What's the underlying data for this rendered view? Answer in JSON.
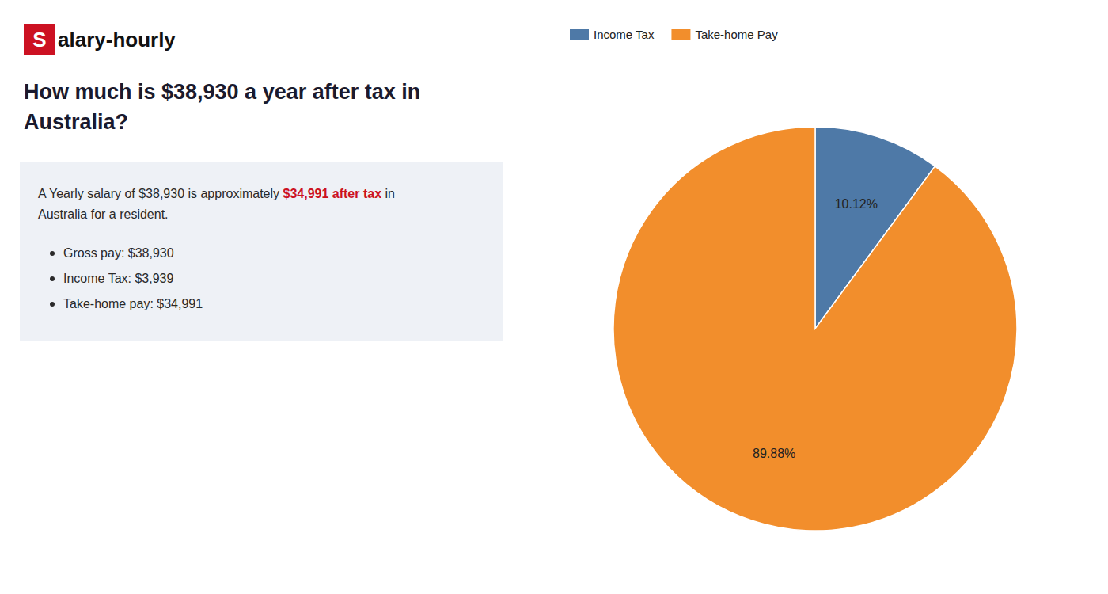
{
  "chart_data": {
    "type": "pie",
    "title": [
      "How much is $38,930 a year after tax in",
      "Australia?"
    ],
    "annotations": [
      {
        "text": "S",
        "color": "#cc1122"
      },
      {
        "text": "alary-hourly"
      },
      {
        "text": "A Yearly salary of $38,930 is approximately "
      },
      {
        "text": "$34,991 after tax",
        "color": "#cc1122"
      },
      {
        "text": " in"
      },
      {
        "text": "Australia for a resident."
      },
      {
        "text": "Gross pay: $38,930"
      },
      {
        "text": "Income Tax: $3,939"
      },
      {
        "text": "Take-home pay: $34,991"
      }
    ],
    "categories": [
      "Income Tax",
      "Take-home Pay"
    ],
    "values": [
      10.12,
      89.88
    ],
    "value_labels": [
      "10.12%",
      "89.88%"
    ],
    "data_labels": true,
    "legend": "top-left"
  }
}
